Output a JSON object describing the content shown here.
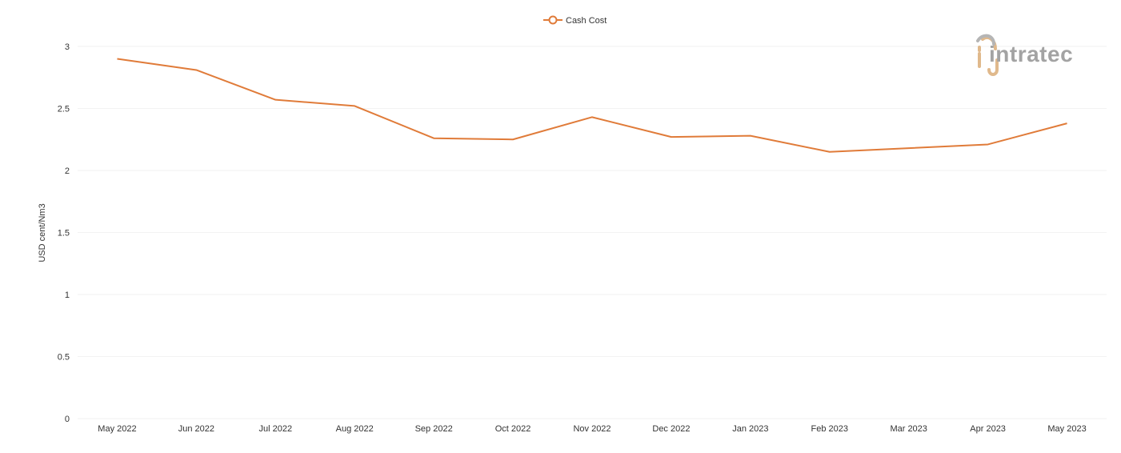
{
  "chart_data": {
    "type": "line",
    "title": "",
    "xlabel": "",
    "ylabel": "USD cent/Nm3",
    "categories": [
      "May 2022",
      "Jun 2022",
      "Jul 2022",
      "Aug 2022",
      "Sep 2022",
      "Oct 2022",
      "Nov 2022",
      "Dec 2022",
      "Jan 2023",
      "Feb 2023",
      "Mar 2023",
      "Apr 2023",
      "May 2023"
    ],
    "series": [
      {
        "name": "Cash Cost",
        "color": "#e07b39",
        "values": [
          2.9,
          2.81,
          2.57,
          2.52,
          2.26,
          2.25,
          2.43,
          2.27,
          2.28,
          2.15,
          2.18,
          2.21,
          2.38
        ]
      }
    ],
    "ylim": [
      0,
      3
    ],
    "yticks": [
      "0",
      "0.5",
      "1",
      "1.5",
      "2",
      "2.5",
      "3"
    ],
    "grid": true,
    "legend_position": "top-center"
  },
  "logo": {
    "text": "intratec",
    "accent_color": "#e0b98c",
    "text_color": "#a3a3a3"
  }
}
